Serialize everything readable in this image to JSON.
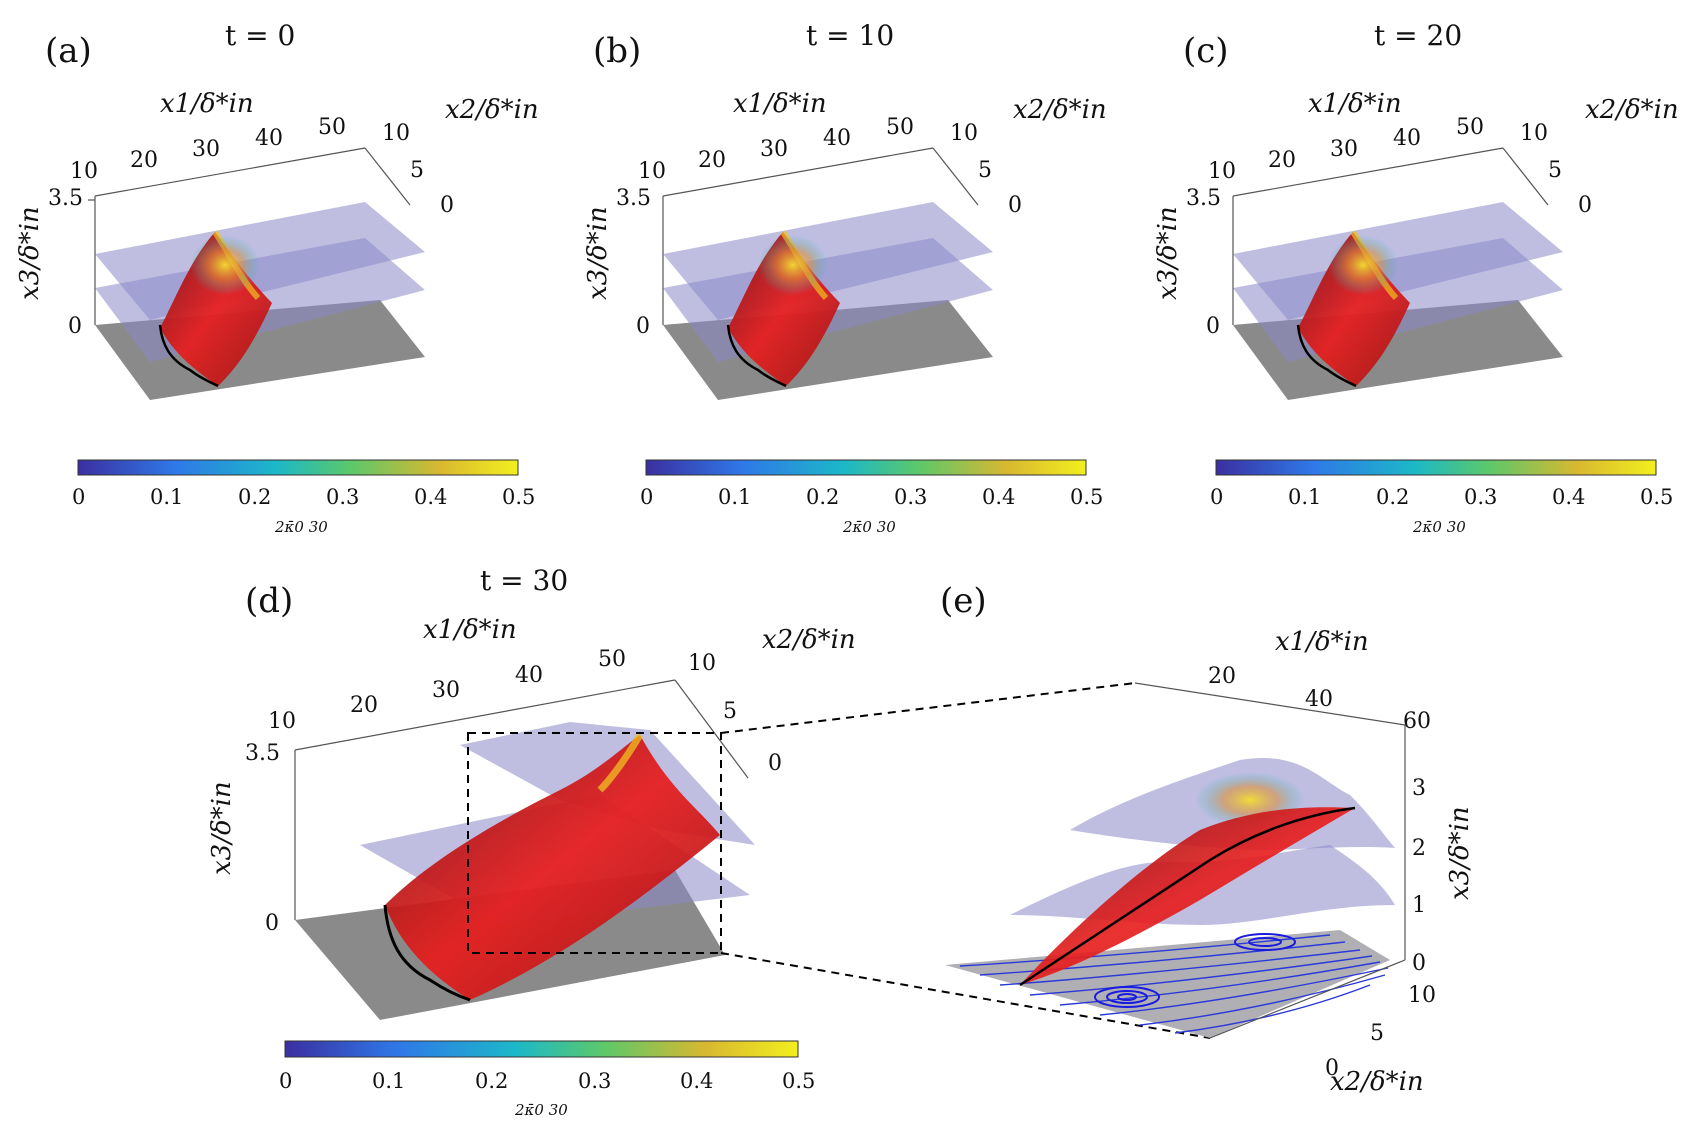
{
  "panels": [
    {
      "label": "(a)",
      "title": "t = 0",
      "x1_ticks": [
        "10",
        "20",
        "30",
        "40",
        "50"
      ],
      "x2_ticks": [
        "10",
        "5",
        "0"
      ],
      "x3_ticks": [
        "3.5",
        "0"
      ],
      "x1_label": "x1/δ*in",
      "x2_label": "x2/δ*in",
      "x3_label": "x3/δ*in",
      "colorbar_ticks": [
        "0",
        "0.1",
        "0.2",
        "0.3",
        "0.4",
        "0.5"
      ],
      "colorbar_label": "2κ̄0 30"
    },
    {
      "label": "(b)",
      "title": "t = 10",
      "x1_ticks": [
        "10",
        "20",
        "30",
        "40",
        "50"
      ],
      "x2_ticks": [
        "10",
        "5",
        "0"
      ],
      "x3_ticks": [
        "3.5",
        "0"
      ],
      "x1_label": "x1/δ*in",
      "x2_label": "x2/δ*in",
      "x3_label": "x3/δ*in",
      "colorbar_ticks": [
        "0",
        "0.1",
        "0.2",
        "0.3",
        "0.4",
        "0.5"
      ],
      "colorbar_label": "2κ̄0 30"
    },
    {
      "label": "(c)",
      "title": "t = 20",
      "x1_ticks": [
        "10",
        "20",
        "30",
        "40",
        "50"
      ],
      "x2_ticks": [
        "10",
        "5",
        "0"
      ],
      "x3_ticks": [
        "3.5",
        "0"
      ],
      "x1_label": "x1/δ*in",
      "x2_label": "x2/δ*in",
      "x3_label": "x3/δ*in",
      "colorbar_ticks": [
        "0",
        "0.1",
        "0.2",
        "0.3",
        "0.4",
        "0.5"
      ],
      "colorbar_label": "2κ̄0 30"
    },
    {
      "label": "(d)",
      "title": "t = 30",
      "x1_ticks": [
        "10",
        "20",
        "30",
        "40",
        "50"
      ],
      "x2_ticks": [
        "10",
        "5",
        "0"
      ],
      "x3_ticks": [
        "3.5",
        "0"
      ],
      "x1_label": "x1/δ*in",
      "x2_label": "x2/δ*in",
      "x3_label": "x3/δ*in",
      "colorbar_ticks": [
        "0",
        "0.1",
        "0.2",
        "0.3",
        "0.4",
        "0.5"
      ],
      "colorbar_label": "2κ̄0 30"
    },
    {
      "label": "(e)",
      "x1_ticks": [
        "20",
        "40",
        "60"
      ],
      "x2_ticks": [
        "10",
        "5",
        "0"
      ],
      "x3_ticks": [
        "3",
        "2",
        "1",
        "0"
      ],
      "x1_label": "x1/δ*in",
      "x2_label": "x2/δ*in",
      "x3_label": "x3/δ*in"
    }
  ],
  "colors": {
    "colormap": [
      "#3b2fa0",
      "#2f78e8",
      "#1cb8c8",
      "#5cc86a",
      "#d8b830",
      "#f2ef1e"
    ],
    "surface": "#e01818",
    "plane": "#8a88c8",
    "floor": "#8a8a8a",
    "streamlines": "#2a3ad8"
  }
}
